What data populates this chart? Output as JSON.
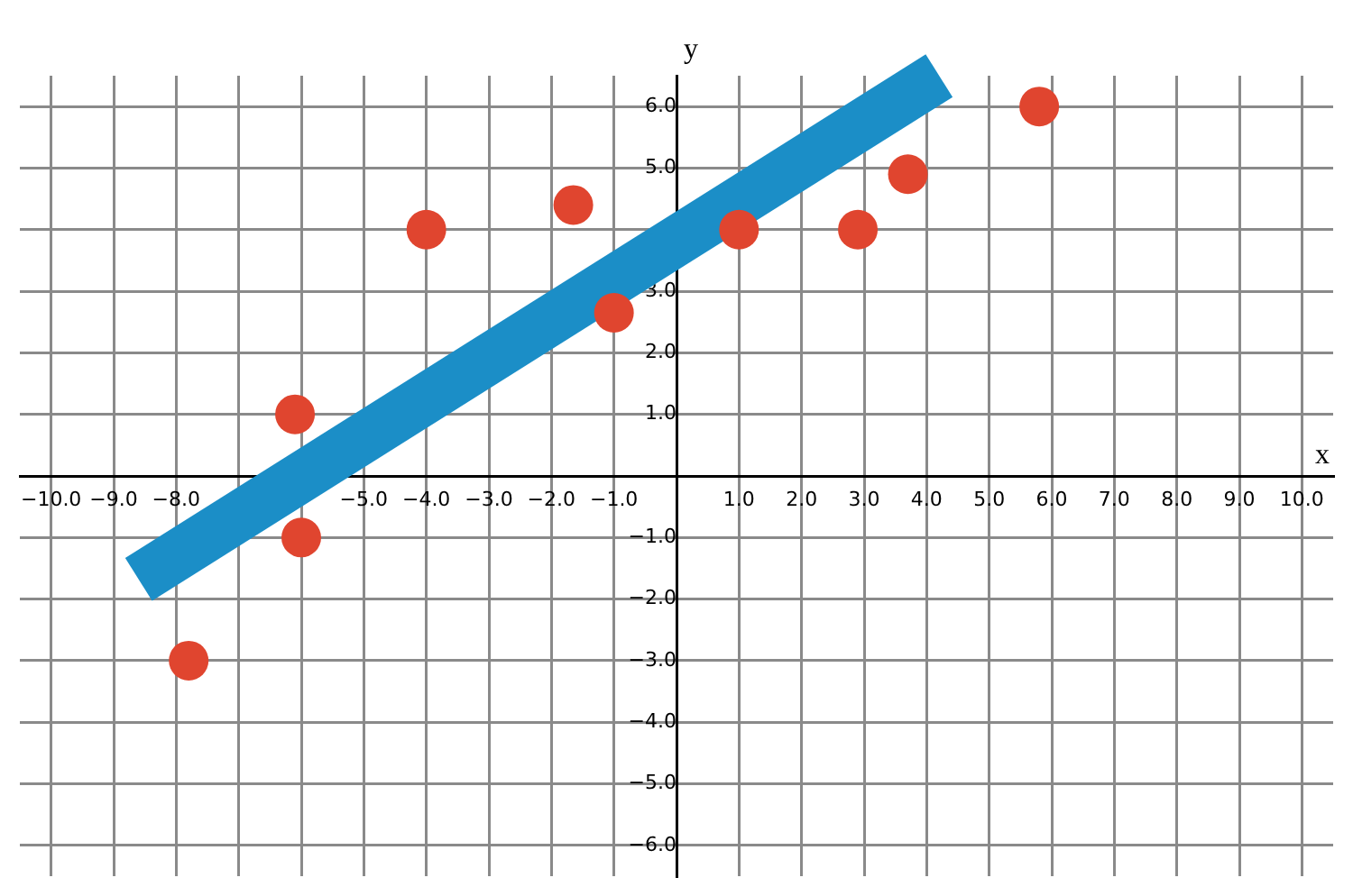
{
  "chart_data": {
    "type": "scatter",
    "xlabel": "x",
    "ylabel": "y",
    "series": [
      {
        "type": "scatter",
        "color": "#e0452f",
        "x": [
          -7.8,
          -6.1,
          -6.0,
          -4.0,
          -1.65,
          -1.0,
          1.0,
          2.9,
          3.7,
          5.8
        ],
        "values": [
          -3.0,
          1.0,
          -1.0,
          4.0,
          4.4,
          2.65,
          4.0,
          4.0,
          4.9,
          6.0
        ]
      },
      {
        "type": "line",
        "color": "#1b8ec7",
        "marker": "none",
        "x": [
          -8.6,
          4.2
        ],
        "values": [
          -1.68,
          6.5
        ]
      }
    ],
    "xlim": [
      -10.5,
      10.5
    ],
    "ylim": [
      -6.5,
      6.5
    ],
    "xticks": [
      {
        "value": -10,
        "label": "−10.0"
      },
      {
        "value": -9,
        "label": "−9.0"
      },
      {
        "value": -8,
        "label": "−8.0"
      },
      {
        "value": -7,
        "label": null
      },
      {
        "value": -6,
        "label": null
      },
      {
        "value": -5,
        "label": "−5.0"
      },
      {
        "value": -4,
        "label": "−4.0"
      },
      {
        "value": -3,
        "label": "−3.0"
      },
      {
        "value": -2,
        "label": "−2.0"
      },
      {
        "value": -1,
        "label": "−1.0"
      },
      {
        "value": 0,
        "label": null
      },
      {
        "value": 1,
        "label": "1.0"
      },
      {
        "value": 2,
        "label": "2.0"
      },
      {
        "value": 3,
        "label": "3.0"
      },
      {
        "value": 4,
        "label": "4.0"
      },
      {
        "value": 5,
        "label": "5.0"
      },
      {
        "value": 6,
        "label": "6.0"
      },
      {
        "value": 7,
        "label": "7.0"
      },
      {
        "value": 8,
        "label": "8.0"
      },
      {
        "value": 9,
        "label": "9.0"
      },
      {
        "value": 10,
        "label": "10.0"
      }
    ],
    "yticks": [
      {
        "value": -6,
        "label": "−6.0"
      },
      {
        "value": -5,
        "label": "−5.0"
      },
      {
        "value": -4,
        "label": "−4.0"
      },
      {
        "value": -3,
        "label": "−3.0"
      },
      {
        "value": -2,
        "label": "−2.0"
      },
      {
        "value": -1,
        "label": "−1.0"
      },
      {
        "value": 0,
        "label": null
      },
      {
        "value": 1,
        "label": "1.0"
      },
      {
        "value": 2,
        "label": "2.0"
      },
      {
        "value": 3,
        "label": "3.0"
      },
      {
        "value": 4,
        "label": null
      },
      {
        "value": 5,
        "label": "5.0"
      },
      {
        "value": 6,
        "label": "6.0"
      }
    ],
    "grid": true,
    "legend": false,
    "marker": "circle"
  }
}
